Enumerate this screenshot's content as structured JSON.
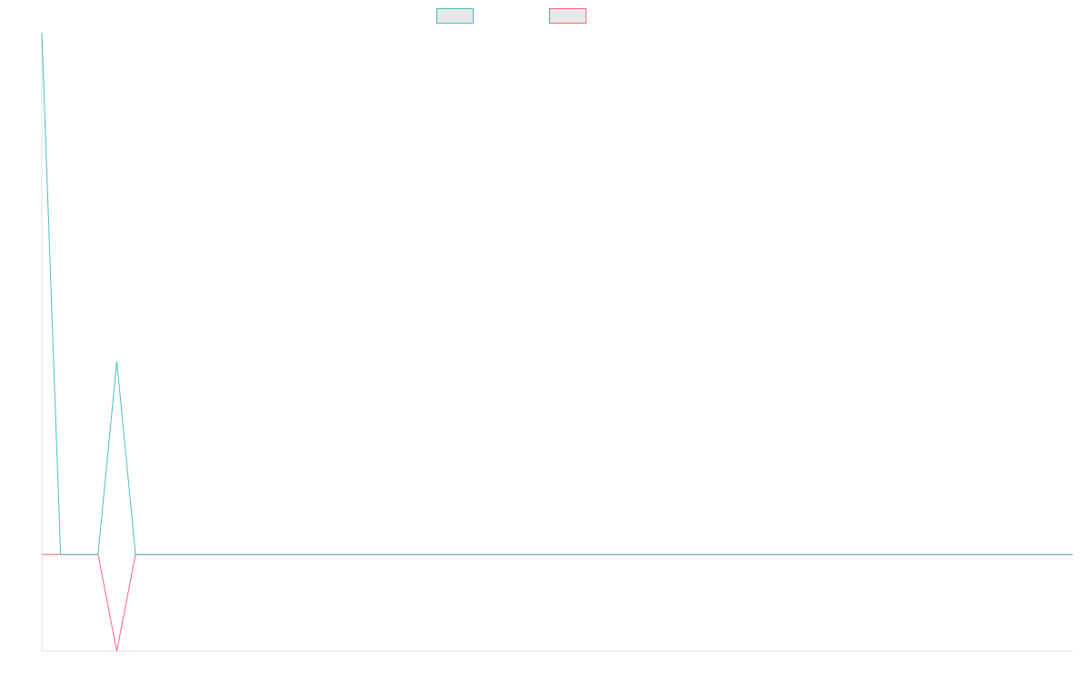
{
  "chart_data": {
    "type": "line",
    "title": "",
    "xlabel": "",
    "ylabel": "",
    "grid": false,
    "legend_position": "top-center",
    "ylim": [
      -1,
      5.4
    ],
    "x": [
      0,
      1,
      2,
      3,
      4,
      5,
      6,
      7,
      8,
      9,
      10,
      11,
      12,
      13,
      14,
      15,
      16,
      17,
      18,
      19,
      20,
      21,
      22,
      23,
      24,
      25,
      26,
      27,
      28,
      29,
      30,
      31,
      32,
      33,
      34,
      35,
      36,
      37,
      38,
      39,
      40,
      41,
      42,
      43,
      44,
      45,
      46,
      47,
      48,
      49,
      50,
      51,
      52,
      53,
      54,
      55
    ],
    "series": [
      {
        "color": "#4bc0c0",
        "fill": "#e8e8e8",
        "values": [
          5.4,
          0,
          0,
          0,
          2,
          0,
          0,
          0,
          0,
          0,
          0,
          0,
          0,
          0,
          0,
          0,
          0,
          0,
          0,
          0,
          0,
          0,
          0,
          0,
          0,
          0,
          0,
          0,
          0,
          0,
          0,
          0,
          0,
          0,
          0,
          0,
          0,
          0,
          0,
          0,
          0,
          0,
          0,
          0,
          0,
          0,
          0,
          0,
          0,
          0,
          0,
          0,
          0,
          0,
          0,
          0
        ]
      },
      {
        "color": "#ff6384",
        "fill": "#e8e8e8",
        "values": [
          0,
          0,
          0,
          0,
          -1,
          0,
          0,
          0,
          0,
          0,
          0,
          0,
          0,
          0,
          0,
          0,
          0,
          0,
          0,
          0,
          0,
          0,
          0,
          0,
          0,
          0,
          0,
          0,
          0,
          0,
          0,
          0,
          0,
          0,
          0,
          0,
          0,
          0,
          0,
          0,
          0,
          0,
          0,
          0,
          0,
          0,
          0,
          0,
          0,
          0,
          0,
          0,
          0,
          0,
          0,
          0
        ]
      }
    ]
  }
}
